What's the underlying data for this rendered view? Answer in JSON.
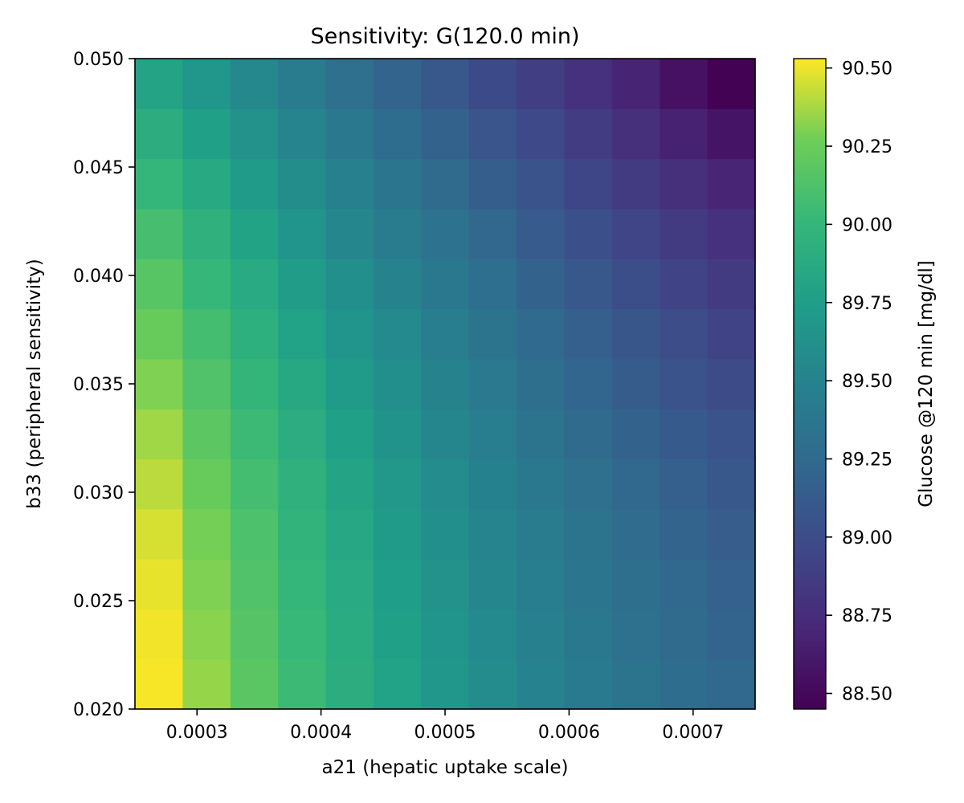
{
  "chart_data": {
    "type": "heatmap",
    "title": "Sensitivity: G(120.0 min)",
    "xlabel": "a21 (hepatic uptake scale)",
    "ylabel": "b33 (peripheral sensitivity)",
    "colorbar_label": "Glucose @120 min [mg/dl]",
    "colormap": "viridis",
    "xlim": [
      0.00025,
      0.00075
    ],
    "ylim": [
      0.02,
      0.05
    ],
    "x_ticks": [
      {
        "value": 0.0003,
        "label": "0.0003"
      },
      {
        "value": 0.0004,
        "label": "0.0004"
      },
      {
        "value": 0.0005,
        "label": "0.0005"
      },
      {
        "value": 0.0006,
        "label": "0.0006"
      },
      {
        "value": 0.0007,
        "label": "0.0007"
      }
    ],
    "y_ticks": [
      {
        "value": 0.02,
        "label": "0.020"
      },
      {
        "value": 0.025,
        "label": "0.025"
      },
      {
        "value": 0.03,
        "label": "0.030"
      },
      {
        "value": 0.035,
        "label": "0.035"
      },
      {
        "value": 0.04,
        "label": "0.040"
      },
      {
        "value": 0.045,
        "label": "0.045"
      },
      {
        "value": 0.05,
        "label": "0.050"
      }
    ],
    "color_range": [
      88.45,
      90.53
    ],
    "colorbar_ticks": [
      {
        "value": 88.5,
        "label": "88.50"
      },
      {
        "value": 88.75,
        "label": "88.75"
      },
      {
        "value": 89.0,
        "label": "89.00"
      },
      {
        "value": 89.25,
        "label": "89.25"
      },
      {
        "value": 89.5,
        "label": "89.50"
      },
      {
        "value": 89.75,
        "label": "89.75"
      },
      {
        "value": 90.0,
        "label": "90.00"
      },
      {
        "value": 90.25,
        "label": "90.25"
      },
      {
        "value": 90.5,
        "label": "90.50"
      }
    ],
    "x": [
      0.00025,
      0.00029,
      0.00033,
      0.00037,
      0.00041,
      0.00046,
      0.0005,
      0.00054,
      0.00058,
      0.00062,
      0.00066,
      0.00071,
      0.00075
    ],
    "y": [
      0.02,
      0.0225,
      0.025,
      0.0275,
      0.03,
      0.0325,
      0.035,
      0.0375,
      0.04,
      0.0425,
      0.045,
      0.0475,
      0.05
    ],
    "values": [
      [
        90.52,
        90.34,
        90.18,
        90.04,
        89.91,
        89.79,
        89.68,
        89.58,
        89.49,
        89.41,
        89.34,
        89.28,
        89.23
      ],
      [
        90.51,
        90.32,
        90.16,
        90.02,
        89.89,
        89.77,
        89.66,
        89.56,
        89.47,
        89.39,
        89.32,
        89.26,
        89.2
      ],
      [
        90.49,
        90.3,
        90.14,
        90.0,
        89.87,
        89.75,
        89.64,
        89.54,
        89.45,
        89.37,
        89.3,
        89.23,
        89.17
      ],
      [
        90.46,
        90.28,
        90.12,
        89.97,
        89.84,
        89.72,
        89.61,
        89.51,
        89.42,
        89.34,
        89.27,
        89.2,
        89.14
      ],
      [
        90.41,
        90.24,
        90.08,
        89.94,
        89.81,
        89.69,
        89.58,
        89.48,
        89.39,
        89.31,
        89.23,
        89.16,
        89.1
      ],
      [
        90.36,
        90.19,
        90.04,
        89.9,
        89.77,
        89.65,
        89.54,
        89.44,
        89.35,
        89.26,
        89.18,
        89.11,
        89.05
      ],
      [
        90.3,
        90.14,
        89.99,
        89.85,
        89.72,
        89.61,
        89.5,
        89.4,
        89.3,
        89.21,
        89.13,
        89.06,
        88.99
      ],
      [
        90.24,
        90.08,
        89.93,
        89.79,
        89.67,
        89.56,
        89.45,
        89.35,
        89.25,
        89.16,
        89.08,
        89.0,
        88.93
      ],
      [
        90.17,
        90.01,
        89.87,
        89.73,
        89.61,
        89.5,
        89.39,
        89.29,
        89.19,
        89.1,
        89.01,
        88.93,
        88.86
      ],
      [
        90.09,
        89.94,
        89.8,
        89.66,
        89.54,
        89.43,
        89.33,
        89.22,
        89.12,
        89.03,
        88.94,
        88.86,
        88.78
      ],
      [
        90.0,
        89.86,
        89.72,
        89.59,
        89.47,
        89.36,
        89.26,
        89.15,
        89.05,
        88.95,
        88.86,
        88.77,
        88.69
      ],
      [
        89.91,
        89.77,
        89.64,
        89.51,
        89.39,
        89.28,
        89.18,
        89.07,
        88.97,
        88.87,
        88.77,
        88.67,
        88.58
      ],
      [
        89.81,
        89.68,
        89.55,
        89.43,
        89.31,
        89.2,
        89.09,
        88.98,
        88.88,
        88.78,
        88.68,
        88.56,
        88.46
      ]
    ]
  }
}
